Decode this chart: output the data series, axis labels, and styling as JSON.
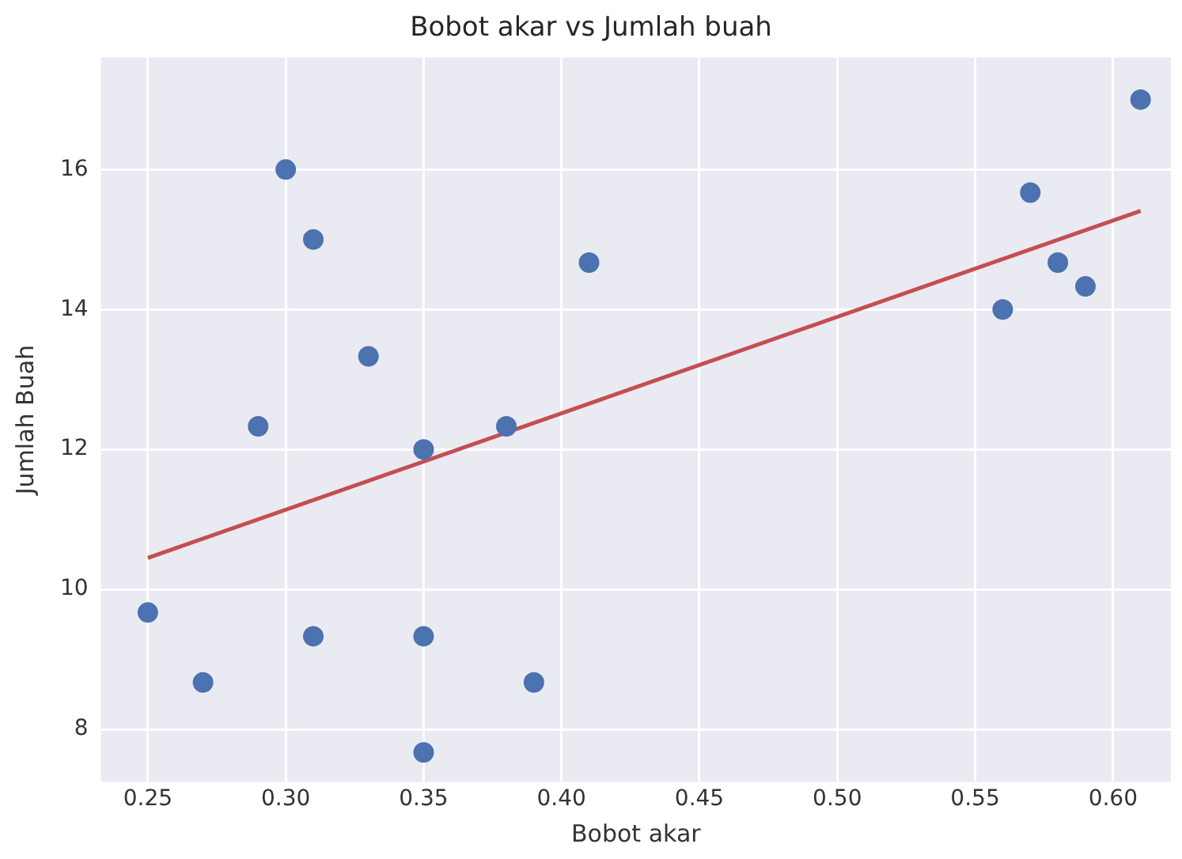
{
  "chart_data": {
    "type": "scatter",
    "title": "Bobot akar vs Jumlah buah",
    "xlabel": "Bobot akar",
    "ylabel": "Jumlah Buah",
    "xlim": [
      0.233,
      0.621
    ],
    "xticks": [
      {
        "value": 0.25,
        "label": "0.25"
      },
      {
        "value": 0.3,
        "label": "0.30"
      },
      {
        "value": 0.35,
        "label": "0.35"
      },
      {
        "value": 0.4,
        "label": "0.40"
      },
      {
        "value": 0.45,
        "label": "0.45"
      },
      {
        "value": 0.5,
        "label": "0.50"
      },
      {
        "value": 0.55,
        "label": "0.55"
      },
      {
        "value": 0.6,
        "label": "0.60"
      }
    ],
    "ylim": [
      7.25,
      17.6
    ],
    "yticks": [
      8,
      10,
      12,
      14,
      16
    ],
    "grid": true,
    "marker": "circle",
    "series": [
      {
        "color": "#4c72b0",
        "x": [
          0.25,
          0.27,
          0.29,
          0.3,
          0.31,
          0.31,
          0.33,
          0.35,
          0.35,
          0.35,
          0.38,
          0.39,
          0.41,
          0.56,
          0.57,
          0.58,
          0.59,
          0.61
        ],
        "values": [
          9.67,
          8.67,
          12.33,
          16,
          15,
          9.33,
          13.33,
          12,
          9.33,
          7.67,
          12.33,
          8.67,
          14.67,
          14,
          15.67,
          14.67,
          14.33,
          17
        ]
      },
      {
        "type": "line",
        "color": "#c44e52",
        "marker": "none",
        "x": [
          0.25,
          0.61
        ],
        "values": [
          10.45,
          15.41
        ]
      }
    ]
  }
}
